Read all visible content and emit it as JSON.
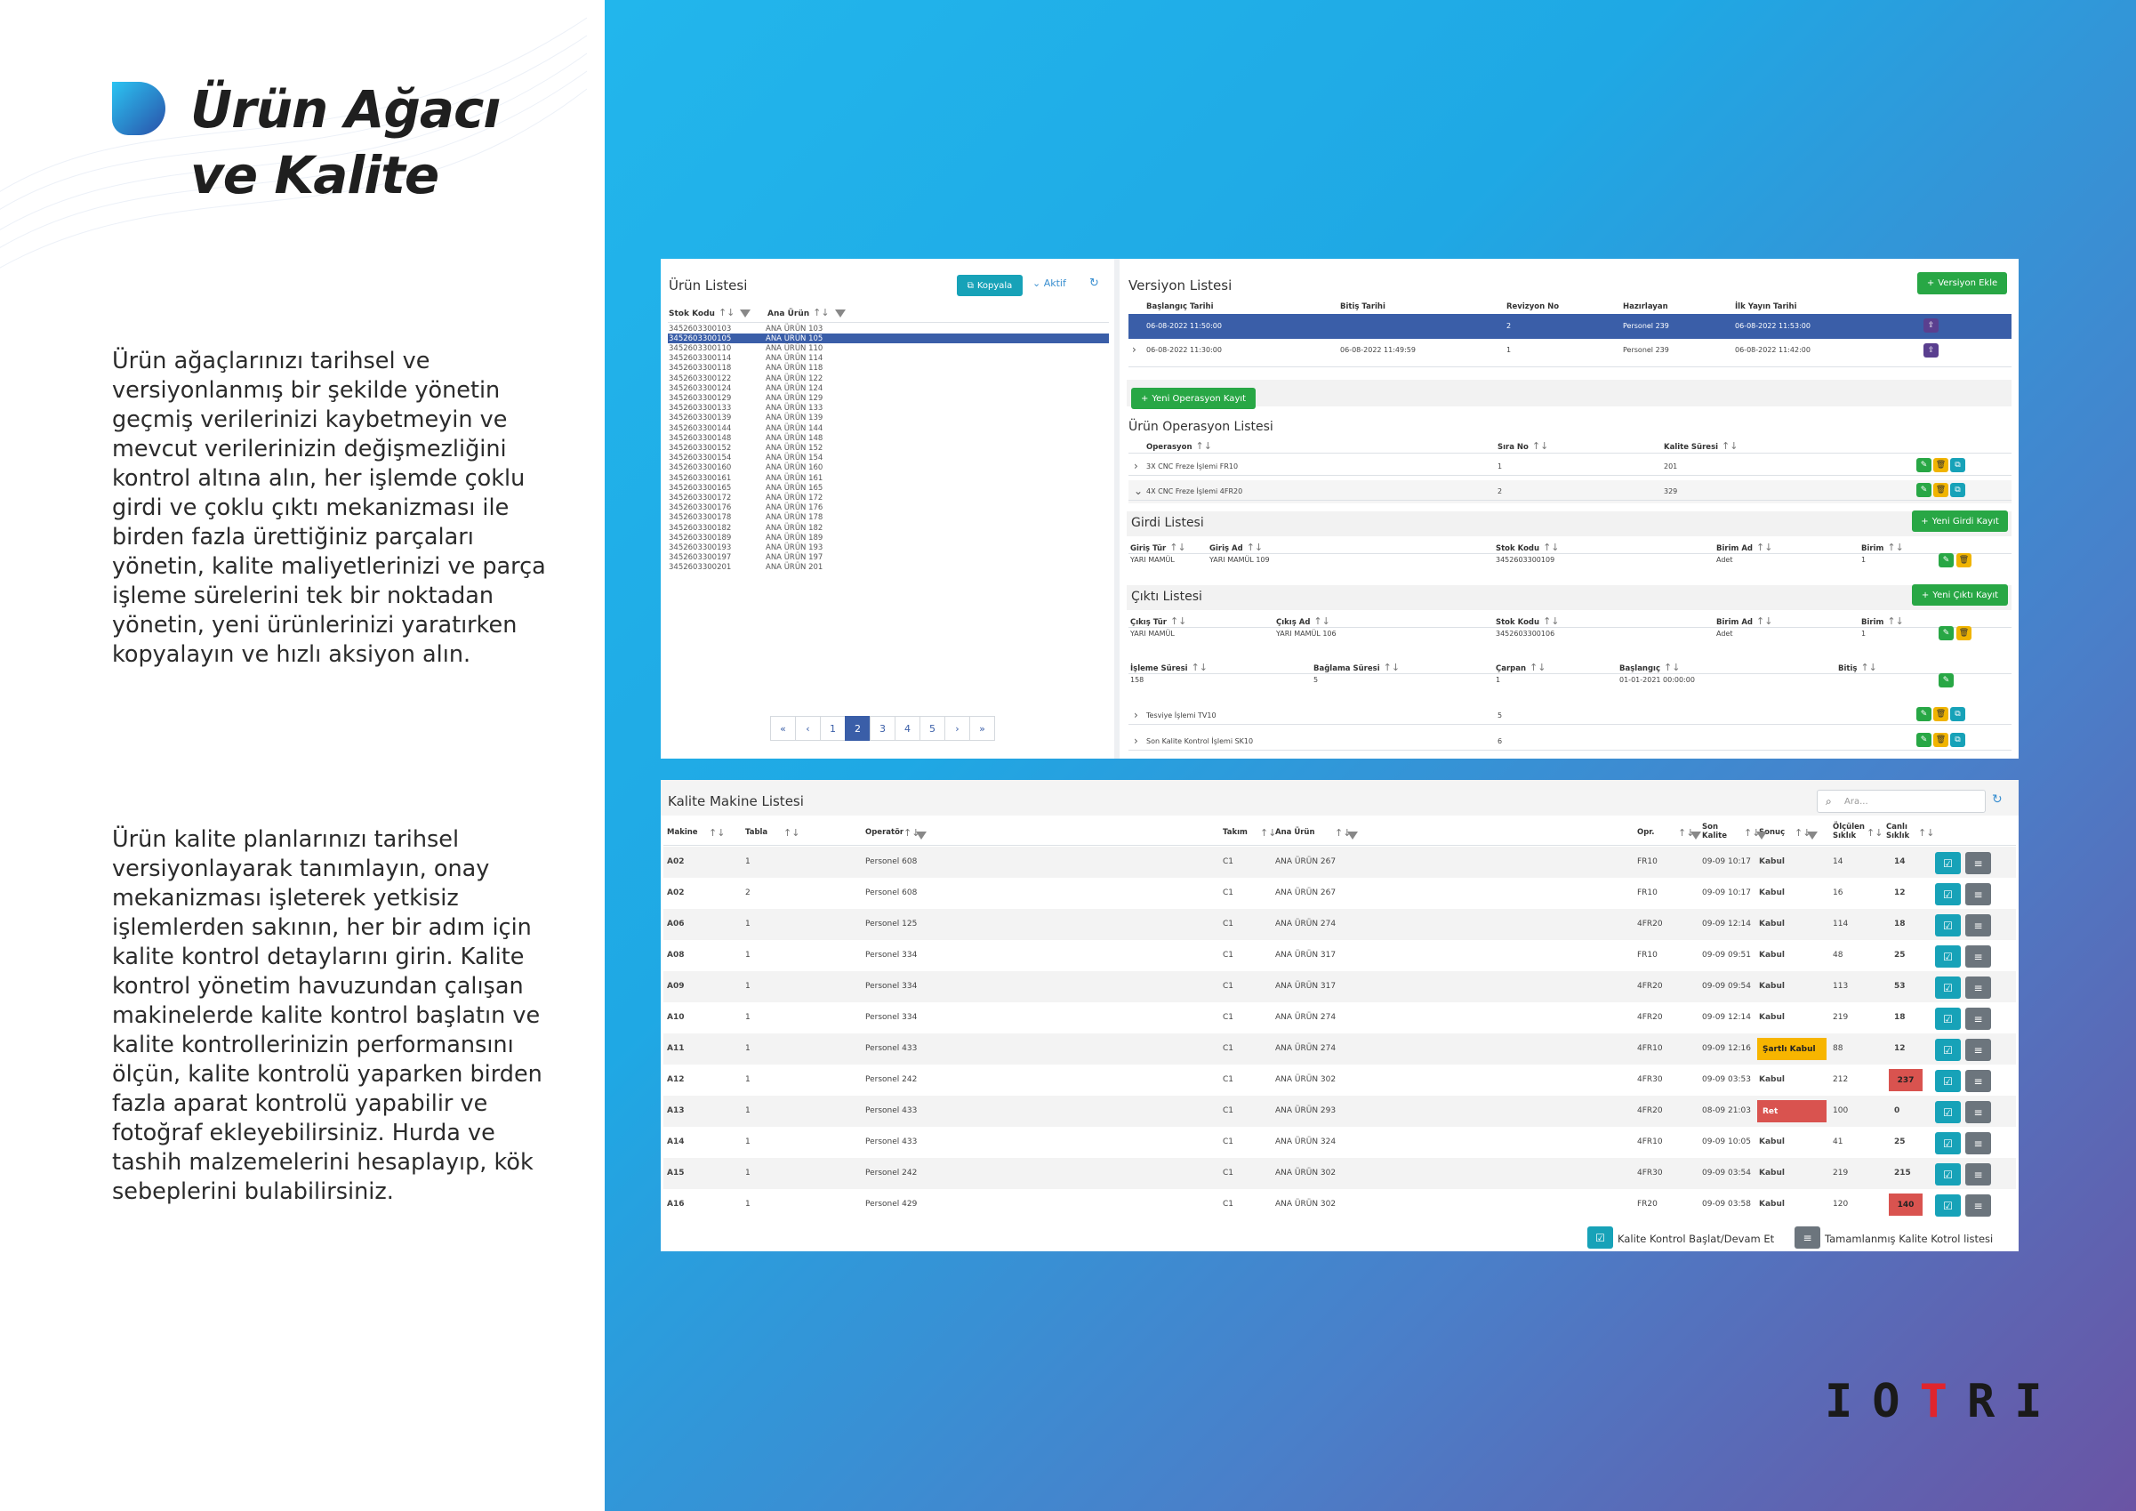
{
  "brochure": {
    "title_line1": "Ürün Ağacı",
    "title_line2": "ve Kalite",
    "paragraph1": "Ürün ağaçlarınızı tarihsel ve versiyonlanmış bir şekilde yönetin geçmiş verilerinizi kaybetmeyin ve mevcut verilerinizin değişmezliğini kontrol altına alın, her işlemde çoklu girdi ve çoklu çıktı mekanizması ile birden fazla ürettiğiniz parçaları yönetin, kalite maliyetlerinizi ve parça işleme sürelerini tek bir noktadan yönetin, yeni ürünlerinizi yaratırken kopyalayın ve hızlı aksiyon alın.",
    "paragraph2": "Ürün kalite planlarınızı tarihsel versiyonlayarak tanımlayın, onay mekanizması işleterek yetkisiz işlemlerden sakının, her bir adım için kalite kontrol detaylarını girin. Kalite kontrol yönetim havuzundan çalışan makinelerde kalite kontrol başlatın ve kalite kontrollerinizin performansını ölçün, kalite kontrolü yaparken birden fazla aparat kontrolü yapabilir ve fotoğraf ekleyebilirsiniz. Hurda ve tashih malzemelerini hesaplayıp, kök sebeplerini bulabilirsiniz.",
    "brand_prefix": "IO",
    "brand_red": "T",
    "brand_suffix": "RI",
    "brand_color": "#e0252d"
  },
  "product_list": {
    "title": "Ürün Listesi",
    "copy_button": "Kopyala",
    "active_filter": "Aktif",
    "col_stock": "Stok Kodu",
    "col_main": "Ana Ürün",
    "rows": [
      [
        "3452603300103",
        "ANA ÜRÜN 103"
      ],
      [
        "3452603300105",
        "ANA ÜRÜN 105"
      ],
      [
        "3452603300110",
        "ANA ÜRÜN 110"
      ],
      [
        "3452603300114",
        "ANA ÜRÜN 114"
      ],
      [
        "3452603300118",
        "ANA ÜRÜN 118"
      ],
      [
        "3452603300122",
        "ANA ÜRÜN 122"
      ],
      [
        "3452603300124",
        "ANA ÜRÜN 124"
      ],
      [
        "3452603300129",
        "ANA ÜRÜN 129"
      ],
      [
        "3452603300133",
        "ANA ÜRÜN 133"
      ],
      [
        "3452603300139",
        "ANA ÜRÜN 139"
      ],
      [
        "3452603300144",
        "ANA ÜRÜN 144"
      ],
      [
        "3452603300148",
        "ANA ÜRÜN 148"
      ],
      [
        "3452603300152",
        "ANA ÜRÜN 152"
      ],
      [
        "3452603300154",
        "ANA ÜRÜN 154"
      ],
      [
        "3452603300160",
        "ANA ÜRÜN 160"
      ],
      [
        "3452603300161",
        "ANA ÜRÜN 161"
      ],
      [
        "3452603300165",
        "ANA ÜRÜN 165"
      ],
      [
        "3452603300172",
        "ANA ÜRÜN 172"
      ],
      [
        "3452603300176",
        "ANA ÜRÜN 176"
      ],
      [
        "3452603300178",
        "ANA ÜRÜN 178"
      ],
      [
        "3452603300182",
        "ANA ÜRÜN 182"
      ],
      [
        "3452603300189",
        "ANA ÜRÜN 189"
      ],
      [
        "3452603300193",
        "ANA ÜRÜN 193"
      ],
      [
        "3452603300197",
        "ANA ÜRÜN 197"
      ],
      [
        "3452603300201",
        "ANA ÜRÜN 201"
      ]
    ],
    "selected_index": 1,
    "pages": [
      "«",
      "‹",
      "1",
      "2",
      "3",
      "4",
      "5",
      "›",
      "»"
    ],
    "active_page": "2"
  },
  "version_list": {
    "title": "Versiyon Listesi",
    "add_button": "Versiyon Ekle",
    "cols": [
      "Başlangıç Tarihi",
      "Bitiş Tarihi",
      "Revizyon No",
      "Hazırlayan",
      "İlk Yayın Tarihi"
    ],
    "rows": [
      [
        "06-08-2022 11:50:00",
        "",
        "2",
        "Personel 239",
        "06-08-2022 11:53:00"
      ],
      [
        "06-08-2022 11:30:00",
        "06-08-2022 11:49:59",
        "1",
        "Personel 239",
        "06-08-2022 11:42:00"
      ]
    ],
    "new_op_button": "Yeni Operasyon Kayıt"
  },
  "operations": {
    "title": "Ürün Operasyon Listesi",
    "cols": [
      "Operasyon",
      "Sıra No",
      "Kalite Süresi"
    ],
    "rows": [
      [
        "3X CNC Freze İşlemi FR10",
        "1",
        "201"
      ],
      [
        "4X CNC Freze İşlemi 4FR20",
        "2",
        "329"
      ],
      [
        "Tesviye İşlemi TV10",
        "5",
        ""
      ],
      [
        "Son Kalite Kontrol İşlemi SK10",
        "6",
        ""
      ]
    ]
  },
  "inputs": {
    "title": "Girdi Listesi",
    "button": "Yeni Girdi Kayıt",
    "cols": [
      "Giriş Tür",
      "Giriş Ad",
      "Stok Kodu",
      "Birim Ad",
      "Birim"
    ],
    "row": [
      "YARI MAMÜL",
      "YARI MAMÜL 109",
      "3452603300109",
      "Adet",
      "1"
    ]
  },
  "outputs": {
    "title": "Çıktı Listesi",
    "button": "Yeni Çıktı Kayıt",
    "cols": [
      "Çıkış Tür",
      "Çıkış Ad",
      "Stok Kodu",
      "Birim Ad",
      "Birim"
    ],
    "row": [
      "YARI MAMÜL",
      "YARI MAMÜL 106",
      "3452603300106",
      "Adet",
      "1"
    ],
    "cols2": [
      "İşleme Süresi",
      "Bağlama Süresi",
      "Çarpan",
      "Başlangıç",
      "Bitiş"
    ],
    "row2": [
      "158",
      "5",
      "1",
      "01-01-2021 00:00:00",
      ""
    ]
  },
  "quality": {
    "title": "Kalite Makine Listesi",
    "search_placeholder": "Ara...",
    "cols": [
      "Makine",
      "Tabla",
      "Operatör",
      "Takım",
      "Ana Ürün",
      "Opr.",
      "Son Kalite",
      "Sonuç",
      "Ölçülen Sıklık",
      "Canlı Sıklık"
    ],
    "rows": [
      [
        "A02",
        "1",
        "Personel 608",
        "C1",
        "ANA ÜRÜN 267",
        "FR10",
        "09-09 10:17",
        "Kabul",
        "14",
        "14"
      ],
      [
        "A02",
        "2",
        "Personel 608",
        "C1",
        "ANA ÜRÜN 267",
        "FR10",
        "09-09 10:17",
        "Kabul",
        "16",
        "12"
      ],
      [
        "A06",
        "1",
        "Personel 125",
        "C1",
        "ANA ÜRÜN 274",
        "4FR20",
        "09-09 12:14",
        "Kabul",
        "114",
        "18"
      ],
      [
        "A08",
        "1",
        "Personel 334",
        "C1",
        "ANA ÜRÜN 317",
        "FR10",
        "09-09 09:51",
        "Kabul",
        "48",
        "25"
      ],
      [
        "A09",
        "1",
        "Personel 334",
        "C1",
        "ANA ÜRÜN 317",
        "4FR20",
        "09-09 09:54",
        "Kabul",
        "113",
        "53"
      ],
      [
        "A10",
        "1",
        "Personel 334",
        "C1",
        "ANA ÜRÜN 274",
        "4FR20",
        "09-09 12:14",
        "Kabul",
        "219",
        "18"
      ],
      [
        "A11",
        "1",
        "Personel 433",
        "C1",
        "ANA ÜRÜN 274",
        "4FR10",
        "09-09 12:16",
        "Şartlı Kabul",
        "88",
        "12"
      ],
      [
        "A12",
        "1",
        "Personel 242",
        "C1",
        "ANA ÜRÜN 302",
        "4FR30",
        "09-09 03:53",
        "Kabul",
        "212",
        "237"
      ],
      [
        "A13",
        "1",
        "Personel 433",
        "C1",
        "ANA ÜRÜN 293",
        "4FR20",
        "08-09 21:03",
        "Ret",
        "100",
        "0"
      ],
      [
        "A14",
        "1",
        "Personel 433",
        "C1",
        "ANA ÜRÜN 324",
        "4FR10",
        "09-09 10:05",
        "Kabul",
        "41",
        "25"
      ],
      [
        "A15",
        "1",
        "Personel 242",
        "C1",
        "ANA ÜRÜN 302",
        "4FR30",
        "09-09 03:54",
        "Kabul",
        "219",
        "215"
      ],
      [
        "A16",
        "1",
        "Personel 429",
        "C1",
        "ANA ÜRÜN 302",
        "FR20",
        "09-09 03:58",
        "Kabul",
        "120",
        "140"
      ]
    ],
    "legend_start": "Kalite Kontrol Başlat/Devam Et",
    "legend_done": "Tamamlanmış Kalite Kotrol listesi",
    "colors": {
      "warning": "#f7b500",
      "danger": "#d9534f",
      "teal": "#17a2b8",
      "gray": "#6c757d"
    }
  }
}
